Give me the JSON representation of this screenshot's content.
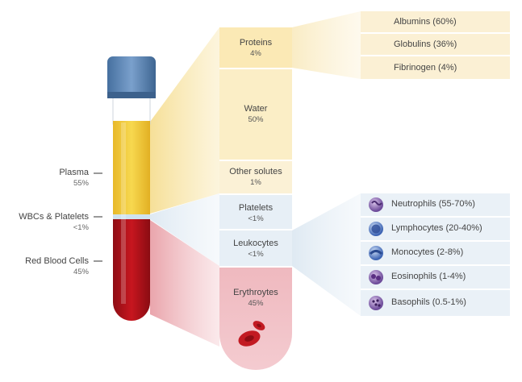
{
  "tube": {
    "plasma": {
      "label": "Plasma",
      "pct": "55%"
    },
    "buffy": {
      "label": "WBCs & Platelets",
      "pct": "<1%"
    },
    "rbc": {
      "label": "Red Blood Cells",
      "pct": "45%"
    }
  },
  "column": {
    "proteins": {
      "label": "Proteins",
      "pct": "4%"
    },
    "water": {
      "label": "Water",
      "pct": "50%"
    },
    "solutes": {
      "label": "Other solutes",
      "pct": "1%"
    },
    "platelets": {
      "label": "Platelets",
      "pct": "<1%"
    },
    "leukocytes": {
      "label": "Leukocytes",
      "pct": "<1%"
    },
    "erythrocytes": {
      "label": "Erythroytes",
      "pct": "45%"
    }
  },
  "proteins_breakdown": [
    "Albumins (60%)",
    "Globulins (36%)",
    "Fibrinogen (4%)"
  ],
  "leukocyte_breakdown": [
    {
      "label": "Neutrophils  (55-70%)",
      "icon": "neutrophil-icon"
    },
    {
      "label": "Lymphocytes (20-40%)",
      "icon": "lymphocyte-icon"
    },
    {
      "label": "Monocytes (2-8%)",
      "icon": "monocyte-icon"
    },
    {
      "label": "Eosinophils (1-4%)",
      "icon": "eosinophil-icon"
    },
    {
      "label": "Basophils (0.5-1%)",
      "icon": "basophil-icon"
    }
  ],
  "colors": {
    "plasma": "#f2cd3a",
    "rbc": "#b3121b",
    "cap": "#5f87b8",
    "cream": "#fbf1d6",
    "blue_panel": "#eaf1f7"
  }
}
